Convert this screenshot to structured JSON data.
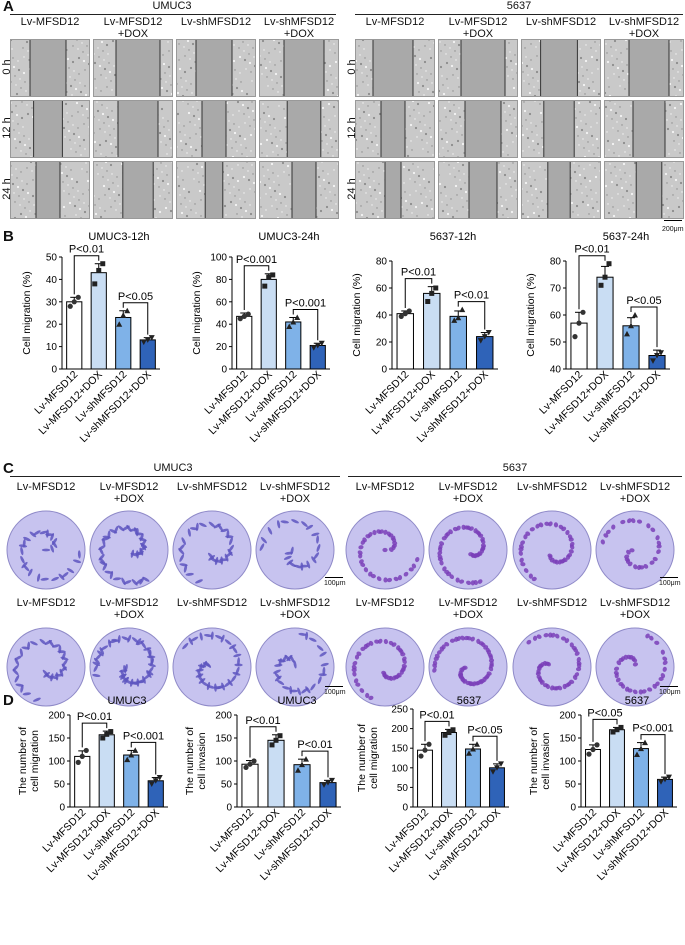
{
  "panelA": {
    "label": "A",
    "groups": [
      "UMUC3",
      "5637"
    ],
    "columns": [
      "Lv-MFSD12",
      "Lv-MFSD12\n+DOX",
      "Lv-shMFSD12",
      "Lv-shMFSD12\n+DOX"
    ],
    "times": [
      "0 h",
      "12 h",
      "24 h"
    ],
    "scale": "200μm"
  },
  "panelB": {
    "label": "B",
    "charts": [
      {
        "title": "UMUC3-12h",
        "ylabel": "Cell migration (%)",
        "ylim": [
          0,
          50
        ],
        "yticks": [
          0,
          10,
          20,
          30,
          40,
          50
        ],
        "categories": [
          "Lv-MFSD12",
          "Lv-MFSD12+DOX",
          "Lv-shMFSD12",
          "Lv-shMFSD12+DOX"
        ],
        "values": [
          30,
          43,
          23,
          13
        ],
        "errors": [
          2,
          4,
          3,
          1
        ],
        "points": [
          [
            28,
            30,
            32
          ],
          [
            38,
            44,
            47
          ],
          [
            20,
            24,
            26
          ],
          [
            12,
            13,
            14
          ]
        ],
        "sig": [
          {
            "pair": [
              0,
              1
            ],
            "text": "P<0.01"
          },
          {
            "pair": [
              2,
              3
            ],
            "text": "P<0.05"
          }
        ]
      },
      {
        "title": "UMUC3-24h",
        "ylabel": "Cell migration (%)",
        "ylim": [
          0,
          100
        ],
        "yticks": [
          0,
          20,
          40,
          60,
          80,
          100
        ],
        "categories": [
          "Lv-MFSD12",
          "Lv-MFSD12+DOX",
          "Lv-shMFSD12",
          "Lv-shMFSD12+DOX"
        ],
        "values": [
          47,
          80,
          42,
          21
        ],
        "errors": [
          3,
          5,
          4,
          2
        ],
        "points": [
          [
            45,
            47,
            49
          ],
          [
            74,
            82,
            84
          ],
          [
            38,
            42,
            46
          ],
          [
            19,
            21,
            23
          ]
        ],
        "sig": [
          {
            "pair": [
              0,
              1
            ],
            "text": "P<0.001"
          },
          {
            "pair": [
              2,
              3
            ],
            "text": "P<0.001"
          }
        ]
      },
      {
        "title": "5637-12h",
        "ylabel": "Cell migration (%)",
        "ylim": [
          0,
          80
        ],
        "yticks": [
          0,
          20,
          40,
          60,
          80
        ],
        "categories": [
          "Lv-MFSD12",
          "Lv-MFSD12+DOX",
          "Lv-shMFSD12",
          "Lv-shMFSD12+DOX"
        ],
        "values": [
          41,
          56,
          39,
          24
        ],
        "errors": [
          2,
          5,
          4,
          3
        ],
        "points": [
          [
            39,
            41,
            43
          ],
          [
            50,
            56,
            60
          ],
          [
            36,
            38,
            44
          ],
          [
            21,
            24,
            27
          ]
        ],
        "sig": [
          {
            "pair": [
              0,
              1
            ],
            "text": "P<0.01"
          },
          {
            "pair": [
              2,
              3
            ],
            "text": "P<0.01"
          }
        ]
      },
      {
        "title": "5637-24h",
        "ylabel": "Cell migration (%)",
        "ylim": [
          40,
          80
        ],
        "yticks": [
          40,
          50,
          60,
          70,
          80
        ],
        "categories": [
          "Lv-MFSD12",
          "Lv-MFSD12+DOX",
          "Lv-shMFSD12",
          "Lv-shMFSD12+DOX"
        ],
        "values": [
          57,
          74,
          56,
          45
        ],
        "errors": [
          4,
          4,
          3,
          2
        ],
        "points": [
          [
            52,
            57,
            61
          ],
          [
            71,
            74,
            79
          ],
          [
            53,
            56,
            60
          ],
          [
            43,
            45,
            46
          ]
        ],
        "sig": [
          {
            "pair": [
              0,
              1
            ],
            "text": "P<0.01"
          },
          {
            "pair": [
              2,
              3
            ],
            "text": "P<0.05"
          }
        ]
      }
    ]
  },
  "panelC": {
    "label": "C",
    "groups": [
      "UMUC3",
      "5637"
    ],
    "columns": [
      "Lv-MFSD12",
      "Lv-MFSD12\n+DOX",
      "Lv-shMFSD12",
      "Lv-shMFSD12\n+DOX"
    ],
    "scale": "100μm"
  },
  "panelD": {
    "label": "D",
    "charts": [
      {
        "title": "UMUC3",
        "ylabel": "The number of\ncell migration",
        "ylim": [
          0,
          200
        ],
        "yticks": [
          0,
          50,
          100,
          150,
          200
        ],
        "categories": [
          "Lv-MFSD12",
          "Lv-MFSD12+DOX",
          "Lv-shMFSD12",
          "Lv-shMFSD12+DOX"
        ],
        "values": [
          110,
          157,
          113,
          57
        ],
        "errors": [
          12,
          8,
          10,
          7
        ],
        "points": [
          [
            97,
            110,
            123
          ],
          [
            150,
            158,
            164
          ],
          [
            103,
            113,
            123
          ],
          [
            50,
            57,
            64
          ]
        ],
        "sig": [
          {
            "pair": [
              0,
              1
            ],
            "text": "P<0.01"
          },
          {
            "pair": [
              2,
              3
            ],
            "text": "P<0.001"
          }
        ]
      },
      {
        "title": "UMUC3",
        "ylabel": "The number of\ncell invasion",
        "ylim": [
          0,
          200
        ],
        "yticks": [
          0,
          50,
          100,
          150,
          200
        ],
        "categories": [
          "Lv-MFSD12",
          "Lv-MFSD12+DOX",
          "Lv-shMFSD12",
          "Lv-shMFSD12+DOX"
        ],
        "values": [
          93,
          145,
          92,
          53
        ],
        "errors": [
          8,
          12,
          12,
          5
        ],
        "points": [
          [
            86,
            93,
            100
          ],
          [
            135,
            145,
            155
          ],
          [
            80,
            92,
            104
          ],
          [
            48,
            53,
            58
          ]
        ],
        "sig": [
          {
            "pair": [
              0,
              1
            ],
            "text": "P<0.01"
          },
          {
            "pair": [
              2,
              3
            ],
            "text": "P<0.01"
          }
        ]
      },
      {
        "title": "5637",
        "ylabel": "The number of\ncell migration",
        "ylim": [
          0,
          250
        ],
        "yticks": [
          0,
          50,
          100,
          150,
          200,
          250
        ],
        "categories": [
          "Lv-MFSD12",
          "Lv-MFSD12+DOX",
          "Lv-shMFSD12",
          "Lv-shMFSD12+DOX"
        ],
        "values": [
          145,
          190,
          148,
          100
        ],
        "errors": [
          15,
          8,
          12,
          10
        ],
        "points": [
          [
            130,
            145,
            160
          ],
          [
            183,
            190,
            197
          ],
          [
            137,
            148,
            160
          ],
          [
            90,
            100,
            110
          ]
        ],
        "sig": [
          {
            "pair": [
              0,
              1
            ],
            "text": "P<0.01"
          },
          {
            "pair": [
              2,
              3
            ],
            "text": "P<0.05"
          }
        ]
      },
      {
        "title": "5637",
        "ylabel": "The number of\ncell invasion",
        "ylim": [
          0,
          200
        ],
        "yticks": [
          0,
          50,
          100,
          150,
          200
        ],
        "categories": [
          "Lv-MFSD12",
          "Lv-MFSD12+DOX",
          "Lv-shMFSD12",
          "Lv-shMFSD12+DOX"
        ],
        "values": [
          125,
          168,
          127,
          60
        ],
        "errors": [
          10,
          5,
          13,
          5
        ],
        "points": [
          [
            115,
            125,
            135
          ],
          [
            163,
            168,
            173
          ],
          [
            114,
            127,
            140
          ],
          [
            55,
            60,
            65
          ]
        ],
        "sig": [
          {
            "pair": [
              0,
              1
            ],
            "text": "P<0.05"
          },
          {
            "pair": [
              2,
              3
            ],
            "text": "P<0.001"
          }
        ]
      }
    ]
  },
  "chart_data": [
    {
      "type": "bar",
      "title": "UMUC3-12h",
      "categories": [
        "Lv-MFSD12",
        "Lv-MFSD12+DOX",
        "Lv-shMFSD12",
        "Lv-shMFSD12+DOX"
      ],
      "values": [
        30,
        43,
        23,
        13
      ],
      "ylabel": "Cell migration (%)",
      "ylim": [
        0,
        50
      ]
    },
    {
      "type": "bar",
      "title": "UMUC3-24h",
      "categories": [
        "Lv-MFSD12",
        "Lv-MFSD12+DOX",
        "Lv-shMFSD12",
        "Lv-shMFSD12+DOX"
      ],
      "values": [
        47,
        80,
        42,
        21
      ],
      "ylabel": "Cell migration (%)",
      "ylim": [
        0,
        100
      ]
    },
    {
      "type": "bar",
      "title": "5637-12h",
      "categories": [
        "Lv-MFSD12",
        "Lv-MFSD12+DOX",
        "Lv-shMFSD12",
        "Lv-shMFSD12+DOX"
      ],
      "values": [
        41,
        56,
        39,
        24
      ],
      "ylabel": "Cell migration (%)",
      "ylim": [
        0,
        80
      ]
    },
    {
      "type": "bar",
      "title": "5637-24h",
      "categories": [
        "Lv-MFSD12",
        "Lv-MFSD12+DOX",
        "Lv-shMFSD12",
        "Lv-shMFSD12+DOX"
      ],
      "values": [
        57,
        74,
        56,
        45
      ],
      "ylabel": "Cell migration (%)",
      "ylim": [
        40,
        80
      ]
    },
    {
      "type": "bar",
      "title": "UMUC3",
      "categories": [
        "Lv-MFSD12",
        "Lv-MFSD12+DOX",
        "Lv-shMFSD12",
        "Lv-shMFSD12+DOX"
      ],
      "values": [
        110,
        157,
        113,
        57
      ],
      "ylabel": "The number of cell migration",
      "ylim": [
        0,
        200
      ]
    },
    {
      "type": "bar",
      "title": "UMUC3",
      "categories": [
        "Lv-MFSD12",
        "Lv-MFSD12+DOX",
        "Lv-shMFSD12",
        "Lv-shMFSD12+DOX"
      ],
      "values": [
        93,
        145,
        92,
        53
      ],
      "ylabel": "The number of cell invasion",
      "ylim": [
        0,
        200
      ]
    },
    {
      "type": "bar",
      "title": "5637",
      "categories": [
        "Lv-MFSD12",
        "Lv-MFSD12+DOX",
        "Lv-shMFSD12",
        "Lv-shMFSD12+DOX"
      ],
      "values": [
        145,
        190,
        148,
        100
      ],
      "ylabel": "The number of cell migration",
      "ylim": [
        0,
        250
      ]
    },
    {
      "type": "bar",
      "title": "5637",
      "categories": [
        "Lv-MFSD12",
        "Lv-MFSD12+DOX",
        "Lv-shMFSD12",
        "Lv-shMFSD12+DOX"
      ],
      "values": [
        125,
        168,
        127,
        60
      ],
      "ylabel": "The number of cell invasion",
      "ylim": [
        0,
        200
      ]
    }
  ],
  "colors": {
    "bar1": "#ffffff",
    "bar2": "#c9ddf3",
    "bar3": "#7fb2e8",
    "bar4": "#2f63b8",
    "crystal": "#5e56c0",
    "cellbg": "#c7c3ef",
    "scratch_edge": "#333333"
  }
}
